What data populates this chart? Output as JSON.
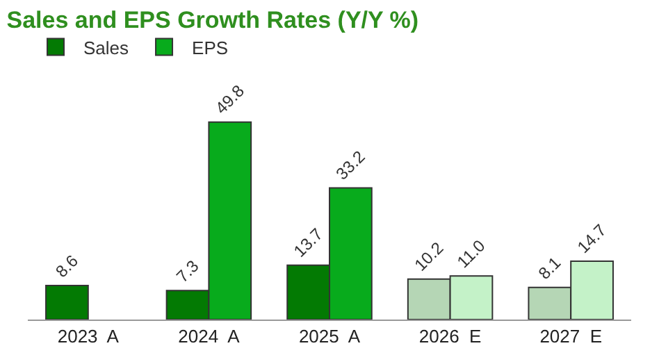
{
  "chart_data": {
    "type": "bar",
    "title": "Sales and EPS Growth Rates (Y/Y %)",
    "categories": [
      "2023  A",
      "2024  A",
      "2025  A",
      "2026  E",
      "2027  E"
    ],
    "series": [
      {
        "name": "Sales",
        "color": "#037a03",
        "colors": [
          "#037a03",
          "#037a03",
          "#037a03",
          "#b5d6b5",
          "#b5d6b5"
        ],
        "values": [
          8.6,
          7.3,
          13.7,
          10.2,
          8.1
        ]
      },
      {
        "name": "EPS",
        "color": "#08ab1c",
        "colors": [
          null,
          "#08ab1c",
          "#08ab1c",
          "#c4f2c8",
          "#c4f2c8"
        ],
        "values": [
          null,
          49.8,
          33.2,
          11.0,
          14.7
        ],
        "value_labels": [
          null,
          "49.8",
          "33.2",
          "11.0",
          "14.7"
        ]
      }
    ],
    "data_labels": true,
    "legend": "top left"
  }
}
